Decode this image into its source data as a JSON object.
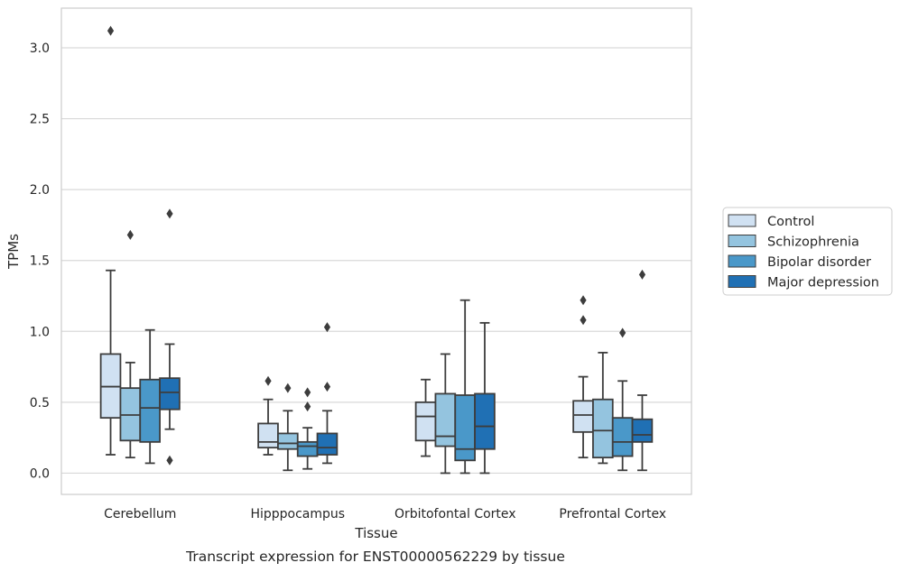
{
  "chart_data": {
    "type": "box",
    "title": "",
    "caption": "Transcript expression for ENST00000562229 by tissue",
    "xlabel": "Tissue",
    "ylabel": "TPMs",
    "ylim": [
      -0.15,
      3.28
    ],
    "yticks": [
      "0.0",
      "0.5",
      "1.0",
      "1.5",
      "2.0",
      "2.5",
      "3.0"
    ],
    "grid": "horizontal",
    "legend_position": "right",
    "categories": [
      "Cerebellum",
      "Hipppocampus",
      "Orbitofontal Cortex",
      "Prefrontal Cortex"
    ],
    "series": [
      {
        "name": "Control",
        "color": "#d0e1f2",
        "boxes": [
          {
            "whislo": 0.13,
            "q1": 0.39,
            "med": 0.61,
            "q3": 0.84,
            "whishi": 1.43,
            "fliers": [
              3.12
            ]
          },
          {
            "whislo": 0.13,
            "q1": 0.18,
            "med": 0.22,
            "q3": 0.35,
            "whishi": 0.52,
            "fliers": [
              0.65
            ]
          },
          {
            "whislo": 0.12,
            "q1": 0.23,
            "med": 0.4,
            "q3": 0.5,
            "whishi": 0.66,
            "fliers": []
          },
          {
            "whislo": 0.11,
            "q1": 0.29,
            "med": 0.41,
            "q3": 0.51,
            "whishi": 0.68,
            "fliers": [
              1.08,
              1.22
            ]
          }
        ]
      },
      {
        "name": "Schizophrenia",
        "color": "#94c4df",
        "boxes": [
          {
            "whislo": 0.11,
            "q1": 0.23,
            "med": 0.41,
            "q3": 0.6,
            "whishi": 0.78,
            "fliers": [
              1.68
            ]
          },
          {
            "whislo": 0.02,
            "q1": 0.17,
            "med": 0.21,
            "q3": 0.28,
            "whishi": 0.44,
            "fliers": [
              0.6
            ]
          },
          {
            "whislo": 0.0,
            "q1": 0.19,
            "med": 0.26,
            "q3": 0.56,
            "whishi": 0.84,
            "fliers": []
          },
          {
            "whislo": 0.07,
            "q1": 0.11,
            "med": 0.3,
            "q3": 0.52,
            "whishi": 0.85,
            "fliers": []
          }
        ]
      },
      {
        "name": "Bipolar disorder",
        "color": "#4a98c9",
        "boxes": [
          {
            "whislo": 0.07,
            "q1": 0.22,
            "med": 0.46,
            "q3": 0.66,
            "whishi": 1.01,
            "fliers": []
          },
          {
            "whislo": 0.03,
            "q1": 0.12,
            "med": 0.19,
            "q3": 0.22,
            "whishi": 0.32,
            "fliers": [
              0.47,
              0.57
            ]
          },
          {
            "whislo": 0.0,
            "q1": 0.09,
            "med": 0.17,
            "q3": 0.55,
            "whishi": 1.22,
            "fliers": []
          },
          {
            "whislo": 0.02,
            "q1": 0.12,
            "med": 0.22,
            "q3": 0.39,
            "whishi": 0.65,
            "fliers": [
              0.99
            ]
          }
        ]
      },
      {
        "name": "Major depression",
        "color": "#2070b4",
        "boxes": [
          {
            "whislo": 0.31,
            "q1": 0.45,
            "med": 0.57,
            "q3": 0.67,
            "whishi": 0.91,
            "fliers": [
              0.09,
              1.83
            ]
          },
          {
            "whislo": 0.07,
            "q1": 0.13,
            "med": 0.18,
            "q3": 0.28,
            "whishi": 0.44,
            "fliers": [
              0.61,
              1.03
            ]
          },
          {
            "whislo": 0.0,
            "q1": 0.17,
            "med": 0.33,
            "q3": 0.56,
            "whishi": 1.06,
            "fliers": []
          },
          {
            "whislo": 0.02,
            "q1": 0.22,
            "med": 0.27,
            "q3": 0.38,
            "whishi": 0.55,
            "fliers": [
              1.4
            ]
          }
        ]
      }
    ]
  }
}
